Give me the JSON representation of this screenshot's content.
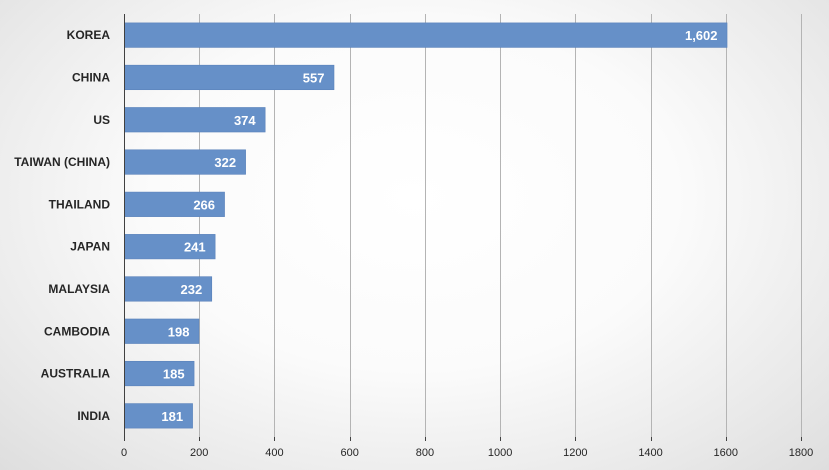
{
  "chart_data": {
    "type": "bar",
    "orientation": "horizontal",
    "categories": [
      "KOREA",
      "CHINA",
      "US",
      "TAIWAN (CHINA)",
      "THAILAND",
      "JAPAN",
      "MALAYSIA",
      "CAMBODIA",
      "AUSTRALIA",
      "INDIA"
    ],
    "values": [
      1602,
      557,
      374,
      322,
      266,
      241,
      232,
      198,
      185,
      181
    ],
    "data_labels": [
      "1,602",
      "557",
      "374",
      "322",
      "266",
      "241",
      "232",
      "198",
      "185",
      "181"
    ],
    "xlim": [
      0,
      1800
    ],
    "x_ticks": [
      0,
      200,
      400,
      600,
      800,
      1000,
      1200,
      1400,
      1600,
      1800
    ],
    "title": "",
    "xlabel": "",
    "ylabel": "",
    "grid": true,
    "legend": "none",
    "colors": {
      "bar": "#6690c8",
      "data_label": "#ffffff",
      "text": "#262626",
      "gridline": "#b4b4b4"
    }
  }
}
